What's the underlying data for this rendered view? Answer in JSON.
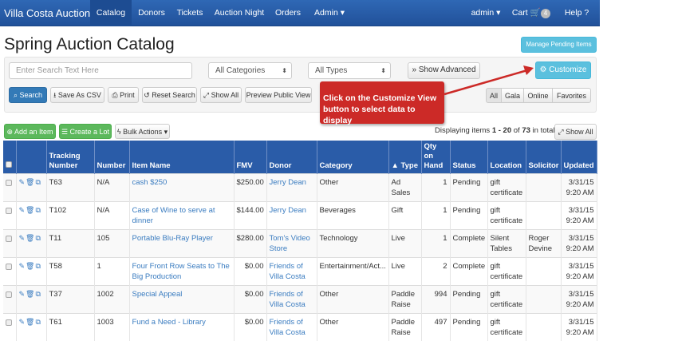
{
  "nav": {
    "brand": "Villa Costa Auction",
    "items": [
      "Catalog",
      "Donors",
      "Tickets",
      "Auction Night",
      "Orders",
      "Admin ▾"
    ],
    "active": "Catalog",
    "admin": "admin ▾",
    "cart": "Cart",
    "cart_count": "4",
    "help": "Help"
  },
  "page": {
    "title": "Spring Auction Catalog",
    "manage_pending": "Manage Pending Items"
  },
  "filters": {
    "search_placeholder": "Enter Search Text Here",
    "category": "All Categories",
    "type": "All Types",
    "show_advanced": "Show Advanced",
    "customize": "Customize"
  },
  "toolbar": {
    "search": "Search",
    "save_csv": "Save As CSV",
    "print": "Print",
    "reset": "Reset Search",
    "show_all": "Show All",
    "preview": "Preview Public View"
  },
  "view_filter": [
    "All",
    "Gala",
    "Online",
    "Favorites"
  ],
  "callout": "Click on the Customize View button to select data to display",
  "actions": {
    "add": "Add an Item",
    "lot": "Create a Lot",
    "bulk": "Bulk Actions"
  },
  "paging": {
    "prefix": "Displaying items ",
    "range": "1 - 20",
    "of": " of ",
    "total": "73",
    "suffix": " in total",
    "show_all": "Show All"
  },
  "table": {
    "headers": [
      "",
      "",
      "Tracking Number",
      "Number",
      "Item Name",
      "FMV",
      "Donor",
      "Category",
      "▲ Type",
      "Qty on Hand",
      "Status",
      "Location",
      "Solicitor",
      "Updated"
    ],
    "rows": [
      [
        "T63",
        "N/A",
        "cash $250",
        "$250.00",
        "Jerry Dean",
        "Other",
        "Ad Sales",
        "1",
        "Pending",
        "gift certificate",
        "",
        "3/31/15 9:20 AM"
      ],
      [
        "T102",
        "N/A",
        "Case of Wine to serve at dinner",
        "$144.00",
        "Jerry Dean",
        "Beverages",
        "Gift",
        "1",
        "Pending",
        "gift certificate",
        "",
        "3/31/15 9:20 AM"
      ],
      [
        "T11",
        "105",
        "Portable Blu-Ray Player",
        "$280.00",
        "Tom's Video Store",
        "Technology",
        "Live",
        "1",
        "Complete",
        "Silent Tables",
        "Roger Devine",
        "3/31/15 9:20 AM"
      ],
      [
        "T58",
        "1",
        "Four Front Row Seats to The Big Production",
        "$0.00",
        "Friends of Villa Costa",
        "Entertainment/Act...",
        "Live",
        "2",
        "Complete",
        "gift certificate",
        "",
        "3/31/15 9:20 AM"
      ],
      [
        "T37",
        "1002",
        "Special Appeal",
        "$0.00",
        "Friends of Villa Costa",
        "Other",
        "Paddle Raise",
        "994",
        "Pending",
        "gift certificate",
        "",
        "3/31/15 9:20 AM"
      ],
      [
        "T61",
        "1003",
        "Fund a Need - Library",
        "$0.00",
        "Friends of Villa Costa",
        "Other",
        "Paddle Raise",
        "497",
        "Pending",
        "gift certificate",
        "",
        "3/31/15 9:20 AM"
      ]
    ]
  }
}
